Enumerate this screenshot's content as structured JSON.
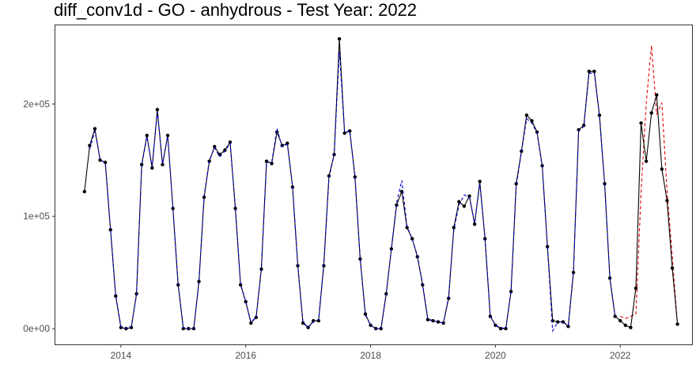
{
  "chart_data": {
    "type": "line",
    "title": "diff_conv1d - GO - anhydrous - Test Year: 2022",
    "xlabel": "",
    "ylabel": "",
    "x_ticks": [
      "2014",
      "2016",
      "2018",
      "2020",
      "2022"
    ],
    "y_ticks": [
      "0e+00",
      "1e+05",
      "2e+05"
    ],
    "xlim": [
      2012.95,
      2023.15
    ],
    "ylim": [
      -14000,
      270000
    ],
    "grid": false,
    "legend": "none",
    "colors": {
      "actual": "#000000",
      "fitted": "#0000cc",
      "forecast": "#e00000"
    },
    "series": [
      {
        "key": "actual",
        "style": "solid line with points",
        "x": [
          "2013-06",
          "2013-07",
          "2013-08",
          "2013-09",
          "2013-10",
          "2013-11",
          "2013-12",
          "2014-01",
          "2014-02",
          "2014-03",
          "2014-04",
          "2014-05",
          "2014-06",
          "2014-07",
          "2014-08",
          "2014-09",
          "2014-10",
          "2014-11",
          "2014-12",
          "2015-01",
          "2015-02",
          "2015-03",
          "2015-04",
          "2015-05",
          "2015-06",
          "2015-07",
          "2015-08",
          "2015-09",
          "2015-10",
          "2015-11",
          "2015-12",
          "2016-01",
          "2016-02",
          "2016-03",
          "2016-04",
          "2016-05",
          "2016-06",
          "2016-07",
          "2016-08",
          "2016-09",
          "2016-10",
          "2016-11",
          "2016-12",
          "2017-01",
          "2017-02",
          "2017-03",
          "2017-04",
          "2017-05",
          "2017-06",
          "2017-07",
          "2017-08",
          "2017-09",
          "2017-10",
          "2017-11",
          "2017-12",
          "2018-01",
          "2018-02",
          "2018-03",
          "2018-04",
          "2018-05",
          "2018-06",
          "2018-07",
          "2018-08",
          "2018-09",
          "2018-10",
          "2018-11",
          "2018-12",
          "2019-01",
          "2019-02",
          "2019-03",
          "2019-04",
          "2019-05",
          "2019-06",
          "2019-07",
          "2019-08",
          "2019-09",
          "2019-10",
          "2019-11",
          "2019-12",
          "2020-01",
          "2020-02",
          "2020-03",
          "2020-04",
          "2020-05",
          "2020-06",
          "2020-07",
          "2020-08",
          "2020-09",
          "2020-10",
          "2020-11",
          "2020-12",
          "2021-01",
          "2021-02",
          "2021-03",
          "2021-04",
          "2021-05",
          "2021-06",
          "2021-07",
          "2021-08",
          "2021-09",
          "2021-10",
          "2021-11",
          "2021-12",
          "2022-01",
          "2022-02",
          "2022-03",
          "2022-04",
          "2022-05",
          "2022-06",
          "2022-07",
          "2022-08",
          "2022-09",
          "2022-10",
          "2022-11",
          "2022-12"
        ],
        "y": [
          122000,
          163000,
          178000,
          150000,
          148000,
          88000,
          29000,
          1000,
          0,
          1000,
          31000,
          146000,
          172000,
          143000,
          195000,
          146000,
          172000,
          107000,
          39000,
          0,
          0,
          0,
          42000,
          117000,
          149000,
          162000,
          155000,
          159000,
          166000,
          107000,
          39000,
          24000,
          5000,
          10000,
          53000,
          149000,
          147000,
          175000,
          163000,
          165000,
          126000,
          56000,
          5000,
          1000,
          7000,
          7000,
          56000,
          136000,
          155000,
          258000,
          174000,
          176000,
          135000,
          62000,
          13000,
          3000,
          0,
          0,
          31000,
          71000,
          110000,
          122000,
          90000,
          80000,
          64000,
          39000,
          8000,
          7000,
          6000,
          5000,
          27000,
          90000,
          113000,
          109000,
          118000,
          93000,
          131000,
          80000,
          11000,
          3000,
          0,
          0,
          33000,
          129000,
          158000,
          190000,
          185000,
          175000,
          145000,
          73000,
          7000,
          6000,
          6000,
          2000,
          50000,
          177000,
          181000,
          229000,
          229000,
          190000,
          129000,
          45000,
          11000,
          7000,
          3000,
          1000,
          36000,
          183000,
          149000,
          192000,
          208000,
          142000,
          114000,
          54000,
          4000
        ]
      },
      {
        "key": "fitted",
        "style": "dashed",
        "x": [
          "2013-07",
          "2013-08",
          "2013-09",
          "2013-10",
          "2013-11",
          "2013-12",
          "2014-01",
          "2014-02",
          "2014-03",
          "2014-04",
          "2014-05",
          "2014-06",
          "2014-07",
          "2014-08",
          "2014-09",
          "2014-10",
          "2014-11",
          "2014-12",
          "2015-01",
          "2015-02",
          "2015-03",
          "2015-04",
          "2015-05",
          "2015-06",
          "2015-07",
          "2015-08",
          "2015-09",
          "2015-10",
          "2015-11",
          "2015-12",
          "2016-01",
          "2016-02",
          "2016-03",
          "2016-04",
          "2016-05",
          "2016-06",
          "2016-07",
          "2016-08",
          "2016-09",
          "2016-10",
          "2016-11",
          "2016-12",
          "2017-01",
          "2017-02",
          "2017-03",
          "2017-04",
          "2017-05",
          "2017-06",
          "2017-07",
          "2017-08",
          "2017-09",
          "2017-10",
          "2017-11",
          "2017-12",
          "2018-01",
          "2018-02",
          "2018-03",
          "2018-04",
          "2018-05",
          "2018-06",
          "2018-07",
          "2018-08",
          "2018-09",
          "2018-10",
          "2018-11",
          "2018-12",
          "2019-01",
          "2019-02",
          "2019-03",
          "2019-04",
          "2019-05",
          "2019-06",
          "2019-07",
          "2019-08",
          "2019-09",
          "2019-10",
          "2019-11",
          "2019-12",
          "2020-01",
          "2020-02",
          "2020-03",
          "2020-04",
          "2020-05",
          "2020-06",
          "2020-07",
          "2020-08",
          "2020-09",
          "2020-10",
          "2020-11",
          "2020-12",
          "2021-01",
          "2021-02",
          "2021-03",
          "2021-04",
          "2021-05",
          "2021-06",
          "2021-07",
          "2021-08",
          "2021-09",
          "2021-10",
          "2021-11",
          "2021-12"
        ],
        "y": [
          160000,
          176000,
          151000,
          147000,
          89000,
          30000,
          2000,
          0,
          2000,
          30000,
          145000,
          171000,
          144000,
          193000,
          147000,
          171000,
          108000,
          40000,
          1000,
          0,
          0,
          41000,
          118000,
          150000,
          161000,
          153000,
          158000,
          165000,
          108000,
          40000,
          24000,
          6000,
          10000,
          54000,
          148000,
          148000,
          178000,
          162000,
          164000,
          127000,
          57000,
          6000,
          1000,
          6000,
          8000,
          57000,
          134000,
          155000,
          247000,
          175000,
          176000,
          136000,
          62000,
          12000,
          3000,
          0,
          0,
          30000,
          71000,
          112000,
          132000,
          91000,
          80000,
          65000,
          40000,
          9000,
          7000,
          6000,
          5000,
          28000,
          88000,
          110000,
          119000,
          117000,
          94000,
          129000,
          81000,
          12000,
          3000,
          1000,
          0,
          34000,
          127000,
          157000,
          187000,
          183000,
          174000,
          144000,
          73000,
          -2000,
          6000,
          6000,
          3000,
          51000,
          176000,
          180000,
          227000,
          228000,
          189000,
          128000,
          46000,
          11000
        ]
      },
      {
        "key": "forecast",
        "style": "dashed",
        "x": [
          "2022-01",
          "2022-02",
          "2022-03",
          "2022-04",
          "2022-05",
          "2022-06",
          "2022-07",
          "2022-08",
          "2022-09",
          "2022-10",
          "2022-11",
          "2022-12"
        ],
        "y": [
          11000,
          9000,
          11000,
          13000,
          121000,
          201000,
          252000,
          191000,
          201000,
          122000,
          64000,
          4000
        ]
      }
    ]
  }
}
